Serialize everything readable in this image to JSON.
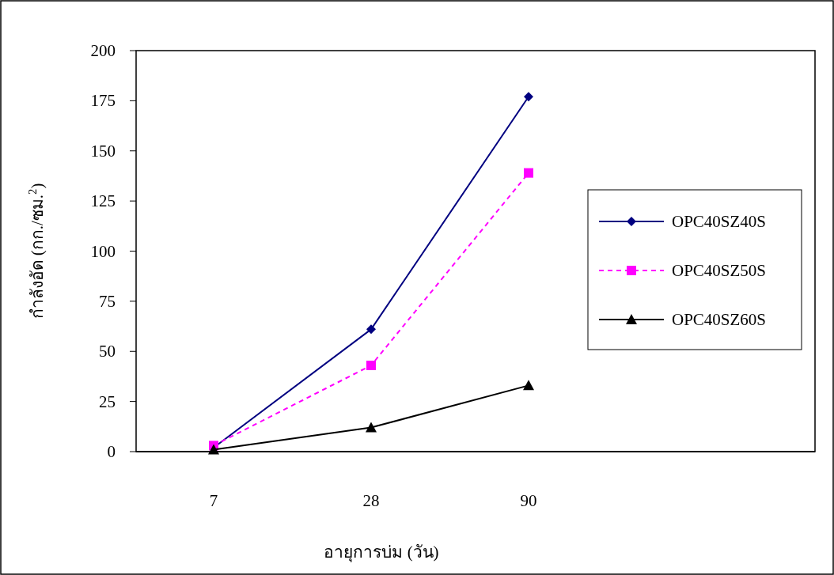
{
  "chart_data": {
    "type": "line",
    "xlabel": "อายุการบ่ม (วัน)",
    "ylabel": "กำลังอัด (กก./ซม.$^{2}$)",
    "categories": [
      "7",
      "28",
      "90"
    ],
    "ylim": [
      0,
      200
    ],
    "yticks": [
      0,
      25,
      50,
      75,
      100,
      125,
      150,
      175,
      200
    ],
    "legend": "right",
    "grid": false,
    "series": [
      {
        "name": "OPC40SZ40S",
        "color": "#000080",
        "values": [
          2,
          61,
          177
        ],
        "marker": "diamond",
        "line_style": "solid"
      },
      {
        "name": "OPC40SZ50S",
        "color": "#ff00ff",
        "values": [
          3,
          43,
          139
        ],
        "marker": "square",
        "line_style": "dashed"
      },
      {
        "name": "OPC40SZ60S",
        "color": "#000000",
        "values": [
          1,
          12,
          33
        ],
        "marker": "triangle",
        "line_style": "solid"
      }
    ]
  }
}
